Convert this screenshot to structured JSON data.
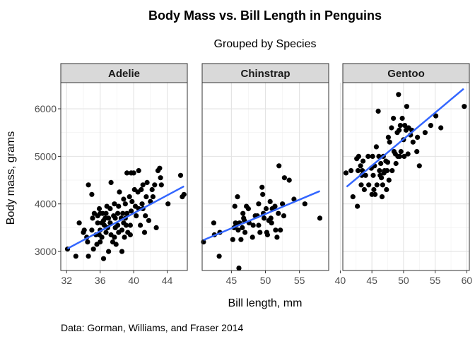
{
  "chart_data": {
    "type": "scatter",
    "title": "Body Mass vs. Bill Length in Penguins",
    "subtitle": "Grouped by Species",
    "xlabel": "Bill length, mm",
    "ylabel": "Body mass, grams",
    "caption": "Data: Gorman, Williams, and Fraser 2014",
    "grid": true,
    "y_ticks": [
      3000,
      4000,
      5000,
      6000
    ],
    "ylim": [
      2600,
      6550
    ],
    "point_color": "#000000",
    "line_color": "#3366ff",
    "strip_fill": "#d9d9d9",
    "panels": [
      {
        "name": "Adelie",
        "xlim": [
          31.3,
          46.4
        ],
        "x_ticks": [
          32,
          36,
          40,
          44
        ],
        "trend": [
          [
            32.1,
            3060
          ],
          [
            46.0,
            4370
          ]
        ],
        "points": [
          [
            32.1,
            3050
          ],
          [
            33.1,
            2900
          ],
          [
            33.5,
            3600
          ],
          [
            34.0,
            3400
          ],
          [
            34.1,
            3450
          ],
          [
            34.4,
            3300
          ],
          [
            34.5,
            3200
          ],
          [
            34.6,
            4400
          ],
          [
            34.6,
            2900
          ],
          [
            35.0,
            4200
          ],
          [
            35.0,
            3450
          ],
          [
            35.1,
            3700
          ],
          [
            35.2,
            3050
          ],
          [
            35.3,
            3800
          ],
          [
            35.5,
            3350
          ],
          [
            35.6,
            3150
          ],
          [
            35.7,
            3750
          ],
          [
            35.7,
            3600
          ],
          [
            35.9,
            3900
          ],
          [
            35.9,
            3350
          ],
          [
            36.0,
            3800
          ],
          [
            36.0,
            3450
          ],
          [
            36.0,
            3200
          ],
          [
            36.2,
            3600
          ],
          [
            36.2,
            3300
          ],
          [
            36.3,
            3800
          ],
          [
            36.4,
            3650
          ],
          [
            36.4,
            2850
          ],
          [
            36.5,
            3550
          ],
          [
            36.6,
            3700
          ],
          [
            36.7,
            3800
          ],
          [
            36.7,
            3400
          ],
          [
            36.8,
            3950
          ],
          [
            36.9,
            3500
          ],
          [
            37.0,
            3700
          ],
          [
            37.0,
            3000
          ],
          [
            37.2,
            3900
          ],
          [
            37.2,
            3600
          ],
          [
            37.3,
            4450
          ],
          [
            37.3,
            3350
          ],
          [
            37.5,
            3200
          ],
          [
            37.6,
            3750
          ],
          [
            37.7,
            4000
          ],
          [
            37.7,
            3300
          ],
          [
            37.8,
            3700
          ],
          [
            37.8,
            3500
          ],
          [
            37.9,
            3150
          ],
          [
            38.1,
            3800
          ],
          [
            38.1,
            3550
          ],
          [
            38.2,
            3950
          ],
          [
            38.2,
            3400
          ],
          [
            38.3,
            4250
          ],
          [
            38.5,
            3700
          ],
          [
            38.6,
            3450
          ],
          [
            38.6,
            3000
          ],
          [
            38.7,
            3800
          ],
          [
            38.8,
            4100
          ],
          [
            38.8,
            3600
          ],
          [
            38.9,
            3300
          ],
          [
            39.0,
            4000
          ],
          [
            39.0,
            3700
          ],
          [
            39.1,
            3550
          ],
          [
            39.2,
            4650
          ],
          [
            39.2,
            3800
          ],
          [
            39.3,
            3400
          ],
          [
            39.5,
            4150
          ],
          [
            39.6,
            3550
          ],
          [
            39.6,
            3350
          ],
          [
            39.7,
            4650
          ],
          [
            39.7,
            3850
          ],
          [
            39.8,
            4050
          ],
          [
            40.0,
            4650
          ],
          [
            40.1,
            4300
          ],
          [
            40.2,
            3950
          ],
          [
            40.3,
            3750
          ],
          [
            40.5,
            4250
          ],
          [
            40.6,
            4700
          ],
          [
            40.6,
            3900
          ],
          [
            40.8,
            3550
          ],
          [
            40.9,
            4300
          ],
          [
            41.0,
            4000
          ],
          [
            41.1,
            4400
          ],
          [
            41.1,
            3900
          ],
          [
            41.3,
            3400
          ],
          [
            41.4,
            3750
          ],
          [
            41.5,
            4150
          ],
          [
            41.6,
            4450
          ],
          [
            41.8,
            3650
          ],
          [
            42.0,
            4050
          ],
          [
            42.2,
            4300
          ],
          [
            42.3,
            4150
          ],
          [
            42.5,
            4400
          ],
          [
            42.7,
            3500
          ],
          [
            42.9,
            4700
          ],
          [
            43.1,
            4750
          ],
          [
            43.2,
            4550
          ],
          [
            43.3,
            4400
          ],
          [
            44.1,
            4000
          ],
          [
            45.6,
            4600
          ],
          [
            45.8,
            4150
          ],
          [
            46.0,
            4200
          ]
        ]
      },
      {
        "name": "Chinstrap",
        "xlim": [
          40.7,
          59.3
        ],
        "x_ticks": [
          45,
          50,
          55
        ],
        "trend": [
          [
            40.9,
            3240
          ],
          [
            58.0,
            4270
          ]
        ],
        "points": [
          [
            40.9,
            3200
          ],
          [
            42.4,
            3600
          ],
          [
            42.5,
            3350
          ],
          [
            43.2,
            2900
          ],
          [
            43.3,
            3400
          ],
          [
            45.2,
            3250
          ],
          [
            45.4,
            3500
          ],
          [
            45.5,
            3950
          ],
          [
            45.6,
            3600
          ],
          [
            45.7,
            3550
          ],
          [
            45.9,
            4150
          ],
          [
            46.0,
            3450
          ],
          [
            46.1,
            2650
          ],
          [
            46.2,
            3600
          ],
          [
            46.4,
            3250
          ],
          [
            46.6,
            3500
          ],
          [
            46.7,
            3800
          ],
          [
            46.8,
            3700
          ],
          [
            46.9,
            3650
          ],
          [
            47.0,
            3400
          ],
          [
            47.2,
            3950
          ],
          [
            47.5,
            3900
          ],
          [
            47.6,
            3600
          ],
          [
            48.1,
            3300
          ],
          [
            48.2,
            3550
          ],
          [
            48.5,
            3750
          ],
          [
            48.8,
            3750
          ],
          [
            49.0,
            4000
          ],
          [
            49.0,
            3550
          ],
          [
            49.2,
            3400
          ],
          [
            49.5,
            4350
          ],
          [
            49.6,
            4200
          ],
          [
            49.7,
            3800
          ],
          [
            49.8,
            3700
          ],
          [
            50.1,
            3900
          ],
          [
            50.2,
            3400
          ],
          [
            50.3,
            3350
          ],
          [
            50.5,
            3650
          ],
          [
            50.7,
            4050
          ],
          [
            50.8,
            3700
          ],
          [
            50.9,
            3600
          ],
          [
            51.0,
            3900
          ],
          [
            51.3,
            3900
          ],
          [
            51.4,
            3950
          ],
          [
            51.5,
            3450
          ],
          [
            51.7,
            3300
          ],
          [
            51.9,
            3800
          ],
          [
            52.0,
            4800
          ],
          [
            52.2,
            3450
          ],
          [
            52.5,
            4000
          ],
          [
            52.7,
            3750
          ],
          [
            52.8,
            4550
          ],
          [
            53.5,
            4500
          ],
          [
            54.2,
            4100
          ],
          [
            55.8,
            4000
          ],
          [
            58.0,
            3700
          ]
        ]
      },
      {
        "name": "Gentoo",
        "xlim": [
          40.4,
          60.4
        ],
        "x_ticks": [
          40,
          45,
          50,
          55,
          60
        ],
        "trend": [
          [
            41.0,
            4360
          ],
          [
            59.5,
            6420
          ]
        ],
        "points": [
          [
            40.9,
            4650
          ],
          [
            41.7,
            4700
          ],
          [
            42.0,
            4150
          ],
          [
            42.6,
            4950
          ],
          [
            42.7,
            3950
          ],
          [
            42.8,
            4700
          ],
          [
            42.9,
            5000
          ],
          [
            43.2,
            4800
          ],
          [
            43.3,
            4400
          ],
          [
            43.4,
            4600
          ],
          [
            43.5,
            4700
          ],
          [
            43.6,
            4900
          ],
          [
            43.8,
            4300
          ],
          [
            44.0,
            4600
          ],
          [
            44.4,
            5000
          ],
          [
            44.5,
            4400
          ],
          [
            44.9,
            4750
          ],
          [
            45.0,
            4200
          ],
          [
            45.1,
            5000
          ],
          [
            45.2,
            4600
          ],
          [
            45.3,
            4300
          ],
          [
            45.4,
            4800
          ],
          [
            45.5,
            4200
          ],
          [
            45.7,
            5200
          ],
          [
            45.8,
            4400
          ],
          [
            46.0,
            5950
          ],
          [
            46.1,
            5000
          ],
          [
            46.2,
            4700
          ],
          [
            46.3,
            4600
          ],
          [
            46.4,
            4850
          ],
          [
            46.5,
            4550
          ],
          [
            46.6,
            4150
          ],
          [
            46.7,
            4400
          ],
          [
            46.8,
            5000
          ],
          [
            46.9,
            4650
          ],
          [
            47.0,
            4700
          ],
          [
            47.2,
            4900
          ],
          [
            47.3,
            4300
          ],
          [
            47.4,
            4700
          ],
          [
            47.5,
            4875
          ],
          [
            47.6,
            5400
          ],
          [
            47.7,
            4500
          ],
          [
            47.8,
            5300
          ],
          [
            48.1,
            5600
          ],
          [
            48.2,
            4700
          ],
          [
            48.4,
            5800
          ],
          [
            48.5,
            5100
          ],
          [
            48.7,
            5050
          ],
          [
            48.8,
            4850
          ],
          [
            49.0,
            5500
          ],
          [
            49.1,
            5000
          ],
          [
            49.2,
            6300
          ],
          [
            49.3,
            5550
          ],
          [
            49.4,
            5000
          ],
          [
            49.5,
            5650
          ],
          [
            49.6,
            5100
          ],
          [
            49.8,
            5800
          ],
          [
            50.0,
            5350
          ],
          [
            50.1,
            5000
          ],
          [
            50.2,
            5650
          ],
          [
            50.4,
            5550
          ],
          [
            50.5,
            6050
          ],
          [
            50.7,
            5050
          ],
          [
            50.8,
            5600
          ],
          [
            51.1,
            5450
          ],
          [
            51.3,
            5550
          ],
          [
            51.5,
            5300
          ],
          [
            52.1,
            5100
          ],
          [
            52.2,
            5400
          ],
          [
            52.5,
            4800
          ],
          [
            53.4,
            5500
          ],
          [
            54.3,
            5650
          ],
          [
            55.1,
            5850
          ],
          [
            55.9,
            5600
          ],
          [
            59.6,
            6050
          ]
        ]
      }
    ]
  }
}
